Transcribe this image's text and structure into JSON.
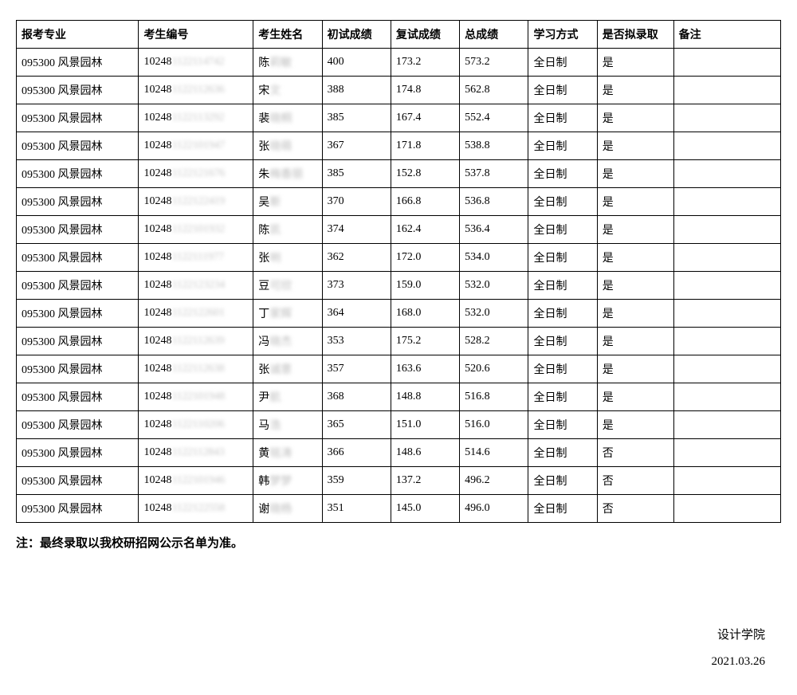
{
  "columns": [
    "报考专业",
    "考生编号",
    "考生姓名",
    "初试成绩",
    "复试成绩",
    "总成绩",
    "学习方式",
    "是否拟录取",
    "备注"
  ],
  "column_widths_pct": [
    16,
    15,
    9,
    9,
    9,
    9,
    9,
    10,
    14
  ],
  "id_prefix": "10248",
  "rows": [
    {
      "major": "095300 风景园林",
      "id_blur": "1122114742",
      "name_first": "陈",
      "name_blur": "莉敏",
      "score1": "400",
      "score2": "173.2",
      "total": "573.2",
      "mode": "全日制",
      "admit": "是",
      "remark": ""
    },
    {
      "major": "095300 风景园林",
      "id_blur": "1122112636",
      "name_first": "宋",
      "name_blur": "文",
      "score1": "388",
      "score2": "174.8",
      "total": "562.8",
      "mode": "全日制",
      "admit": "是",
      "remark": ""
    },
    {
      "major": "095300 风景园林",
      "id_blur": "1122113292",
      "name_first": "裴",
      "name_blur": "晓桐",
      "score1": "385",
      "score2": "167.4",
      "total": "552.4",
      "mode": "全日制",
      "admit": "是",
      "remark": ""
    },
    {
      "major": "095300 风景园林",
      "id_blur": "1122101947",
      "name_first": "张",
      "name_blur": "晓萌",
      "score1": "367",
      "score2": "171.8",
      "total": "538.8",
      "mode": "全日制",
      "admit": "是",
      "remark": ""
    },
    {
      "major": "095300 风景园林",
      "id_blur": "1122121676",
      "name_first": "朱",
      "name_blur": "梅香丽",
      "score1": "385",
      "score2": "152.8",
      "total": "537.8",
      "mode": "全日制",
      "admit": "是",
      "remark": ""
    },
    {
      "major": "095300 风景园林",
      "id_blur": "1122122419",
      "name_first": "吴",
      "name_blur": "斯",
      "score1": "370",
      "score2": "166.8",
      "total": "536.8",
      "mode": "全日制",
      "admit": "是",
      "remark": ""
    },
    {
      "major": "095300 风景园林",
      "id_blur": "1122101932",
      "name_first": "陈",
      "name_blur": "凯",
      "score1": "374",
      "score2": "162.4",
      "total": "536.4",
      "mode": "全日制",
      "admit": "是",
      "remark": ""
    },
    {
      "major": "095300 风景园林",
      "id_blur": "1122111977",
      "name_first": "张",
      "name_blur": "明",
      "score1": "362",
      "score2": "172.0",
      "total": "534.0",
      "mode": "全日制",
      "admit": "是",
      "remark": ""
    },
    {
      "major": "095300 风景园林",
      "id_blur": "1122123234",
      "name_first": "豆",
      "name_blur": "可欣",
      "score1": "373",
      "score2": "159.0",
      "total": "532.0",
      "mode": "全日制",
      "admit": "是",
      "remark": ""
    },
    {
      "major": "095300 风景园林",
      "id_blur": "1122122601",
      "name_first": "丁",
      "name_blur": "家辉",
      "score1": "364",
      "score2": "168.0",
      "total": "532.0",
      "mode": "全日制",
      "admit": "是",
      "remark": ""
    },
    {
      "major": "095300 风景园林",
      "id_blur": "1122112639",
      "name_first": "冯",
      "name_blur": "晓杰",
      "score1": "353",
      "score2": "175.2",
      "total": "528.2",
      "mode": "全日制",
      "admit": "是",
      "remark": ""
    },
    {
      "major": "095300 风景园林",
      "id_blur": "1122112638",
      "name_first": "张",
      "name_blur": "诚意",
      "score1": "357",
      "score2": "163.6",
      "total": "520.6",
      "mode": "全日制",
      "admit": "是",
      "remark": ""
    },
    {
      "major": "095300 风景园林",
      "id_blur": "1122101948",
      "name_first": "尹",
      "name_blur": "航",
      "score1": "368",
      "score2": "148.8",
      "total": "516.8",
      "mode": "全日制",
      "admit": "是",
      "remark": ""
    },
    {
      "major": "095300 风景园林",
      "id_blur": "1122110206",
      "name_first": "马",
      "name_blur": "浩",
      "score1": "365",
      "score2": "151.0",
      "total": "516.0",
      "mode": "全日制",
      "admit": "是",
      "remark": ""
    },
    {
      "major": "095300 风景园林",
      "id_blur": "1122112843",
      "name_first": "黄",
      "name_blur": "铭涛",
      "score1": "366",
      "score2": "148.6",
      "total": "514.6",
      "mode": "全日制",
      "admit": "否",
      "remark": ""
    },
    {
      "major": "095300 风景园林",
      "id_blur": "1122101946",
      "name_first": "韩",
      "name_blur": "梦梦",
      "score1": "359",
      "score2": "137.2",
      "total": "496.2",
      "mode": "全日制",
      "admit": "否",
      "remark": ""
    },
    {
      "major": "095300 风景园林",
      "id_blur": "1122122558",
      "name_first": "谢",
      "name_blur": "晓杨",
      "score1": "351",
      "score2": "145.0",
      "total": "496.0",
      "mode": "全日制",
      "admit": "否",
      "remark": ""
    }
  ],
  "note": "注：最终录取以我校研招网公示名单为准。",
  "footer": {
    "department": "设计学院",
    "date": "2021.03.26"
  },
  "styling": {
    "background_color": "#ffffff",
    "border_color": "#000000",
    "text_color": "#000000",
    "blur_color": "#c8c8c8",
    "cell_fontsize": 14,
    "note_fontsize": 15,
    "footer_fontsize": 15,
    "font_family": "SimSun"
  }
}
